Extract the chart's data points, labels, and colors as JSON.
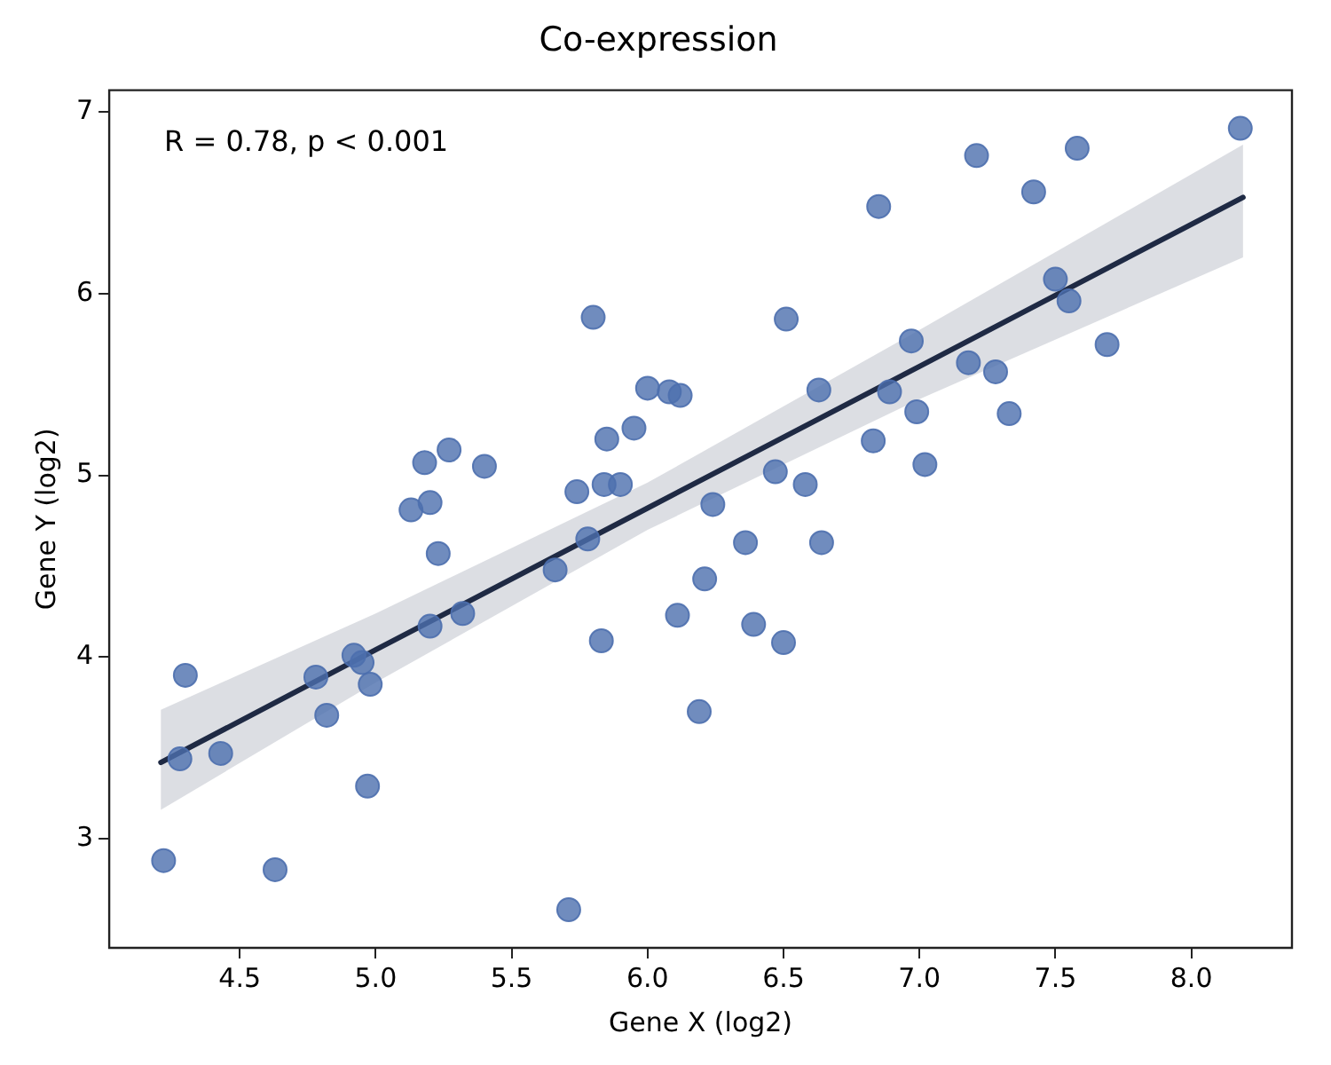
{
  "chart_data": {
    "type": "scatter",
    "title": "Co-expression",
    "xlabel": "Gene X (log2)",
    "ylabel": "Gene Y (log2)",
    "annotations": [
      "R = 0.78, p < 0.001"
    ],
    "xlim": [
      4.02,
      8.37
    ],
    "xticks": [
      {
        "value": 4.5,
        "label": "4.5"
      },
      {
        "value": 5,
        "label": "5.0"
      },
      {
        "value": 5.5,
        "label": "5.5"
      },
      {
        "value": 6,
        "label": "6.0"
      },
      {
        "value": 6.5,
        "label": "6.5"
      },
      {
        "value": 7,
        "label": "7.0"
      },
      {
        "value": 7.5,
        "label": "7.5"
      },
      {
        "value": 8,
        "label": "8.0"
      }
    ],
    "ylim": [
      2.4,
      7.12
    ],
    "yticks": [
      3,
      4,
      5,
      6,
      7
    ],
    "grid": false,
    "legend": false,
    "series": [
      {
        "color": "#4c6fae",
        "marker": "circle",
        "x": [
          4.22,
          4.28,
          4.3,
          4.43,
          4.63,
          4.78,
          4.82,
          4.92,
          4.95,
          4.98,
          4.97,
          5.13,
          5.2,
          5.23,
          5.2,
          5.32,
          5.66,
          5.78,
          5.71,
          5.83,
          6.11,
          6.19,
          6.21,
          6.36,
          6.64,
          6.39,
          6.5,
          6.24,
          5.8,
          6.0,
          6.08,
          6.12,
          5.95,
          5.85,
          5.27,
          5.18,
          5.4,
          5.74,
          5.84,
          5.9,
          8.18,
          7.21,
          7.58,
          7.42,
          6.85,
          6.51,
          7.5,
          7.55,
          7.69,
          6.97,
          7.18,
          7.28,
          6.63,
          6.89,
          6.99,
          7.33,
          6.83,
          7.02,
          6.47,
          6.58
        ],
        "values": [
          2.88,
          3.44,
          3.9,
          3.47,
          2.83,
          3.89,
          3.68,
          4.01,
          3.97,
          3.85,
          3.29,
          4.81,
          4.85,
          4.57,
          4.17,
          4.24,
          4.48,
          4.65,
          2.61,
          4.09,
          4.23,
          3.7,
          4.43,
          4.63,
          4.63,
          4.18,
          4.08,
          4.84,
          5.87,
          5.48,
          5.46,
          5.44,
          5.26,
          5.2,
          5.14,
          5.07,
          5.05,
          4.91,
          4.95,
          4.95,
          6.91,
          6.76,
          6.8,
          6.56,
          6.48,
          5.86,
          6.08,
          5.96,
          5.72,
          5.74,
          5.62,
          5.57,
          5.47,
          5.46,
          5.35,
          5.34,
          5.19,
          5.06,
          5.02,
          4.95
        ]
      },
      {
        "type": "line",
        "color": "#1f2a44",
        "line_style": "solid",
        "x": [
          4.21,
          5.0,
          6.0,
          7.0,
          8.19
        ],
        "values": [
          3.42,
          4.04,
          4.82,
          5.6,
          6.53
        ],
        "lower": [
          3.16,
          3.86,
          4.7,
          5.42,
          6.2
        ],
        "upper": [
          3.71,
          4.24,
          4.96,
          5.8,
          6.82
        ]
      }
    ]
  }
}
